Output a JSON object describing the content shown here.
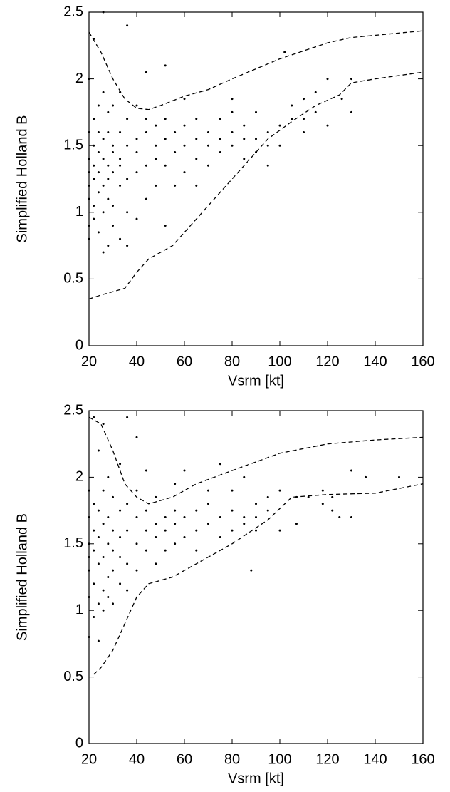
{
  "chart_data": [
    {
      "type": "scatter",
      "xlabel": "Vsrm [kt]",
      "ylabel": "Simplified Holland B",
      "xlim": [
        20,
        160
      ],
      "ylim": [
        0,
        2.5
      ],
      "xticks": [
        20,
        40,
        60,
        80,
        100,
        120,
        140,
        160
      ],
      "yticks": [
        0,
        0.5,
        1,
        1.5,
        2,
        2.5
      ],
      "series": [
        {
          "color": "#000000",
          "style": "dots",
          "x": [
            20,
            20,
            20,
            20,
            20,
            20,
            20,
            20,
            22,
            22,
            22,
            22,
            22,
            22,
            22,
            24,
            24,
            24,
            24,
            24,
            24,
            26,
            26,
            26,
            26,
            26,
            26,
            26,
            28,
            28,
            28,
            28,
            28,
            28,
            30,
            30,
            30,
            30,
            30,
            30,
            33,
            33,
            33,
            33,
            33,
            33,
            36,
            36,
            36,
            36,
            36,
            36,
            40,
            40,
            40,
            40,
            40,
            44,
            44,
            44,
            44,
            44,
            48,
            48,
            48,
            48,
            52,
            52,
            52,
            52,
            52,
            56,
            56,
            56,
            60,
            60,
            60,
            60,
            65,
            65,
            65,
            65,
            70,
            70,
            70,
            75,
            75,
            75,
            80,
            80,
            80,
            80,
            85,
            85,
            85,
            90,
            90,
            90,
            95,
            95,
            95,
            100,
            100,
            102,
            105,
            105,
            110,
            110,
            110,
            115,
            115,
            120,
            120,
            126,
            130,
            130
          ],
          "values": [
            1.2,
            1.4,
            0.9,
            1.6,
            1.1,
            2.0,
            0.8,
            1.3,
            1.25,
            1.5,
            0.95,
            1.7,
            1.05,
            1.35,
            2.3,
            1.45,
            1.15,
            0.85,
            1.8,
            1.3,
            1.6,
            1.0,
            1.4,
            1.2,
            0.7,
            1.9,
            1.55,
            2.5,
            1.1,
            1.35,
            1.6,
            0.75,
            1.75,
            1.25,
            1.5,
            1.05,
            1.3,
            1.8,
            0.9,
            1.45,
            1.2,
            1.6,
            1.4,
            0.8,
            1.9,
            1.35,
            1.0,
            1.5,
            1.7,
            1.25,
            2.4,
            0.75,
            1.3,
            1.55,
            0.95,
            1.8,
            1.45,
            1.1,
            1.6,
            1.7,
            1.35,
            2.05,
            1.4,
            1.2,
            1.65,
            1.5,
            0.9,
            1.55,
            1.35,
            1.7,
            2.1,
            1.45,
            1.2,
            1.6,
            1.5,
            1.3,
            1.65,
            1.85,
            1.4,
            1.55,
            1.7,
            1.2,
            1.35,
            1.6,
            1.5,
            1.7,
            1.45,
            1.55,
            1.6,
            1.75,
            1.85,
            1.5,
            1.65,
            1.55,
            1.4,
            1.55,
            1.75,
            1.45,
            1.6,
            1.35,
            1.5,
            1.65,
            1.5,
            2.2,
            1.8,
            1.7,
            1.85,
            1.7,
            1.6,
            1.75,
            1.9,
            1.65,
            2.0,
            1.85,
            1.75,
            2.0
          ]
        },
        {
          "color": "#000000",
          "style": "dashed",
          "x": [
            20,
            25,
            30,
            35,
            40,
            45,
            50,
            60,
            70,
            80,
            100,
            120,
            130,
            160
          ],
          "values": [
            2.35,
            2.2,
            2.0,
            1.85,
            1.78,
            1.77,
            1.8,
            1.87,
            1.92,
            2.0,
            2.15,
            2.27,
            2.31,
            2.36
          ]
        },
        {
          "color": "#000000",
          "style": "dashed",
          "x": [
            20,
            25,
            35,
            40,
            45,
            55,
            65,
            75,
            85,
            95,
            105,
            115,
            125,
            130,
            140,
            160
          ],
          "values": [
            0.35,
            0.38,
            0.43,
            0.55,
            0.65,
            0.75,
            0.95,
            1.15,
            1.35,
            1.55,
            1.68,
            1.8,
            1.88,
            1.97,
            2.0,
            2.05
          ]
        }
      ]
    },
    {
      "type": "scatter",
      "xlabel": "Vsrm [kt]",
      "ylabel": "Simplified Holland B",
      "xlim": [
        20,
        160
      ],
      "ylim": [
        0,
        2.5
      ],
      "xticks": [
        20,
        40,
        60,
        80,
        100,
        120,
        140,
        160
      ],
      "yticks": [
        0,
        0.5,
        1,
        1.5,
        2,
        2.5
      ],
      "series": [
        {
          "color": "#000000",
          "style": "dots",
          "x": [
            20,
            20,
            20,
            20,
            20,
            20,
            20,
            22,
            22,
            22,
            22,
            22,
            22,
            24,
            24,
            24,
            24,
            24,
            24,
            26,
            26,
            26,
            26,
            26,
            26,
            28,
            28,
            28,
            28,
            28,
            30,
            30,
            30,
            30,
            30,
            33,
            33,
            33,
            33,
            33,
            36,
            36,
            36,
            36,
            36,
            40,
            40,
            40,
            40,
            40,
            44,
            44,
            44,
            44,
            48,
            48,
            48,
            48,
            52,
            52,
            52,
            56,
            56,
            56,
            56,
            60,
            60,
            60,
            65,
            65,
            65,
            70,
            70,
            70,
            75,
            75,
            75,
            80,
            80,
            80,
            85,
            85,
            85,
            88,
            90,
            90,
            90,
            95,
            95,
            100,
            100,
            107,
            107,
            112,
            118,
            118,
            122,
            122,
            125,
            130,
            130,
            136,
            150
          ],
          "values": [
            1.3,
            1.5,
            1.1,
            1.7,
            0.8,
            1.9,
            1.4,
            1.2,
            1.6,
            0.95,
            1.45,
            2.45,
            1.8,
            1.35,
            1.05,
            1.55,
            1.75,
            0.77,
            2.2,
            1.4,
            1.15,
            1.65,
            1.9,
            1.0,
            2.4,
            1.5,
            1.25,
            1.7,
            1.1,
            2.0,
            1.45,
            1.6,
            1.3,
            1.85,
            1.05,
            1.55,
            1.2,
            1.75,
            1.4,
            2.1,
            1.6,
            1.35,
            1.8,
            1.15,
            2.45,
            1.5,
            1.7,
            1.3,
            1.9,
            2.3,
            1.6,
            1.45,
            1.75,
            2.05,
            1.55,
            1.65,
            1.35,
            1.85,
            1.6,
            1.7,
            1.45,
            1.65,
            1.75,
            1.5,
            1.95,
            1.7,
            1.55,
            2.05,
            1.6,
            1.75,
            1.45,
            1.65,
            1.8,
            1.9,
            1.7,
            1.55,
            2.1,
            1.75,
            1.6,
            1.9,
            1.65,
            1.7,
            2.0,
            1.3,
            1.7,
            1.8,
            1.6,
            1.75,
            1.85,
            1.6,
            1.9,
            1.65,
            1.85,
            1.85,
            1.8,
            1.9,
            1.75,
            1.85,
            1.7,
            2.05,
            1.7,
            2.0,
            2.0
          ]
        },
        {
          "color": "#000000",
          "style": "dashed",
          "x": [
            20,
            25,
            30,
            35,
            40,
            45,
            55,
            65,
            80,
            100,
            120,
            140,
            160
          ],
          "values": [
            2.45,
            2.4,
            2.2,
            1.95,
            1.85,
            1.8,
            1.85,
            1.95,
            2.05,
            2.18,
            2.25,
            2.28,
            2.3
          ]
        },
        {
          "color": "#000000",
          "style": "dashed",
          "x": [
            22,
            25,
            30,
            35,
            40,
            45,
            55,
            65,
            80,
            95,
            105,
            120,
            140,
            160
          ],
          "values": [
            0.52,
            0.57,
            0.7,
            0.9,
            1.1,
            1.2,
            1.25,
            1.35,
            1.5,
            1.68,
            1.85,
            1.87,
            1.88,
            1.95
          ]
        }
      ]
    }
  ]
}
